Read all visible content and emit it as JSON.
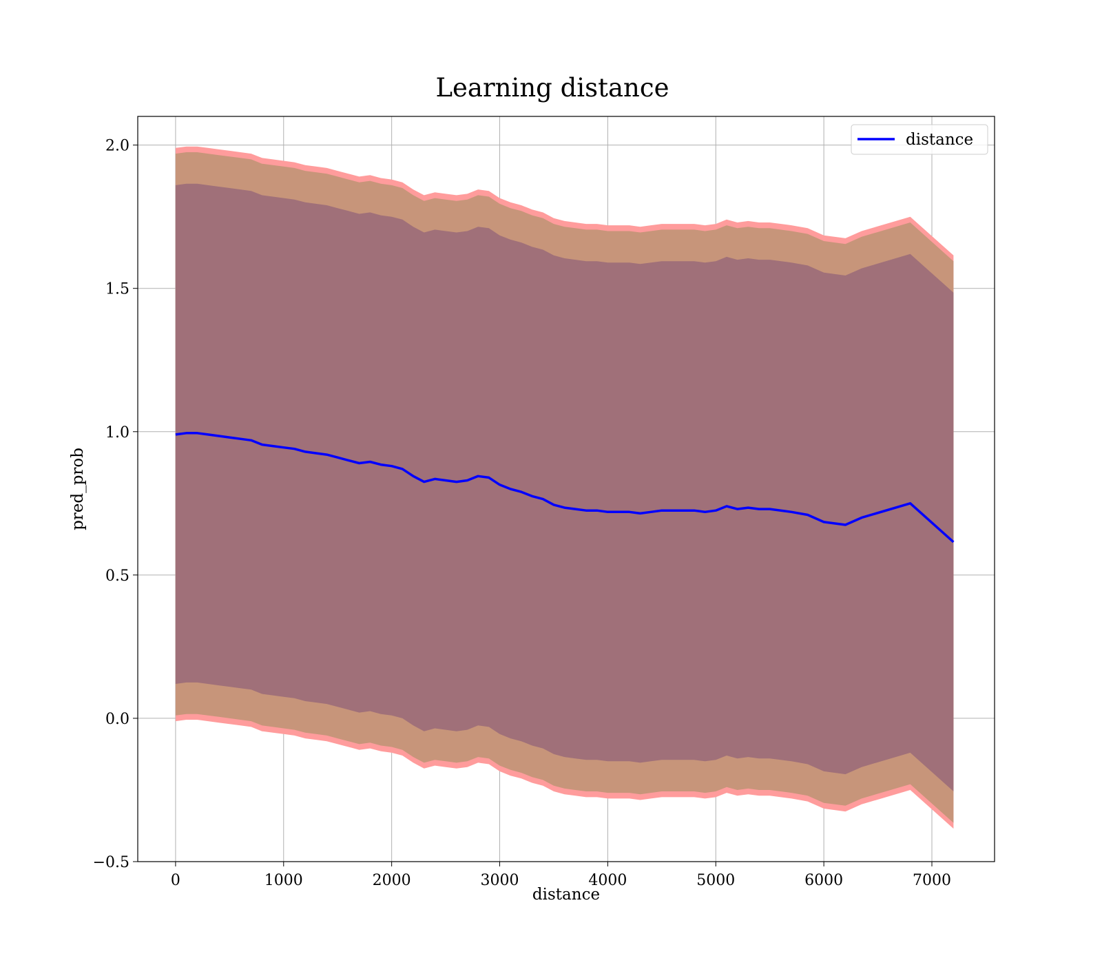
{
  "chart_data": {
    "type": "line",
    "title": "Learning distance",
    "xlabel": "distance",
    "ylabel": "pred_prob",
    "xlim": [
      -350,
      7580
    ],
    "ylim": [
      -0.5,
      2.1
    ],
    "xticks": [
      0,
      1000,
      2000,
      3000,
      4000,
      5000,
      6000,
      7000
    ],
    "xtick_labels": [
      "0",
      "1000",
      "2000",
      "3000",
      "4000",
      "5000",
      "6000",
      "7000"
    ],
    "yticks": [
      -0.5,
      0.0,
      0.5,
      1.0,
      1.5,
      2.0
    ],
    "ytick_labels": [
      "−0.5",
      "0.0",
      "0.5",
      "1.0",
      "1.5",
      "2.0"
    ],
    "grid": true,
    "legend": {
      "position": "top-right",
      "entries": [
        "distance"
      ]
    },
    "colors": {
      "line": "#0000ff",
      "outer_band": "#ff9c9c",
      "middle_band": "#c7957a",
      "inner_band": "#a07079",
      "grid": "#b0b0b0"
    },
    "x": [
      0,
      100,
      200,
      300,
      400,
      500,
      600,
      700,
      800,
      900,
      1000,
      1100,
      1200,
      1300,
      1400,
      1500,
      1600,
      1700,
      1800,
      1900,
      2000,
      2100,
      2200,
      2300,
      2400,
      2500,
      2600,
      2700,
      2800,
      2900,
      3000,
      3100,
      3200,
      3300,
      3400,
      3500,
      3600,
      3700,
      3800,
      3900,
      4000,
      4100,
      4200,
      4300,
      4400,
      4500,
      4600,
      4700,
      4800,
      4900,
      5000,
      5100,
      5200,
      5300,
      5400,
      5500,
      5700,
      5850,
      6000,
      6200,
      6350,
      6800,
      7200
    ],
    "series": [
      {
        "name": "distance",
        "values": [
          0.99,
          0.995,
          0.995,
          0.99,
          0.985,
          0.98,
          0.975,
          0.97,
          0.955,
          0.95,
          0.945,
          0.94,
          0.93,
          0.925,
          0.92,
          0.91,
          0.9,
          0.89,
          0.895,
          0.885,
          0.88,
          0.87,
          0.845,
          0.825,
          0.835,
          0.83,
          0.825,
          0.83,
          0.845,
          0.84,
          0.815,
          0.8,
          0.79,
          0.775,
          0.765,
          0.745,
          0.735,
          0.73,
          0.725,
          0.725,
          0.72,
          0.72,
          0.72,
          0.715,
          0.72,
          0.725,
          0.725,
          0.725,
          0.725,
          0.72,
          0.725,
          0.74,
          0.73,
          0.735,
          0.73,
          0.73,
          0.72,
          0.71,
          0.685,
          0.675,
          0.7,
          0.75,
          0.615
        ]
      }
    ],
    "bands": [
      {
        "role": "outer",
        "half_width": 1.0
      },
      {
        "role": "middle",
        "half_width": 0.98
      },
      {
        "role": "inner",
        "half_width": 0.87
      }
    ]
  }
}
